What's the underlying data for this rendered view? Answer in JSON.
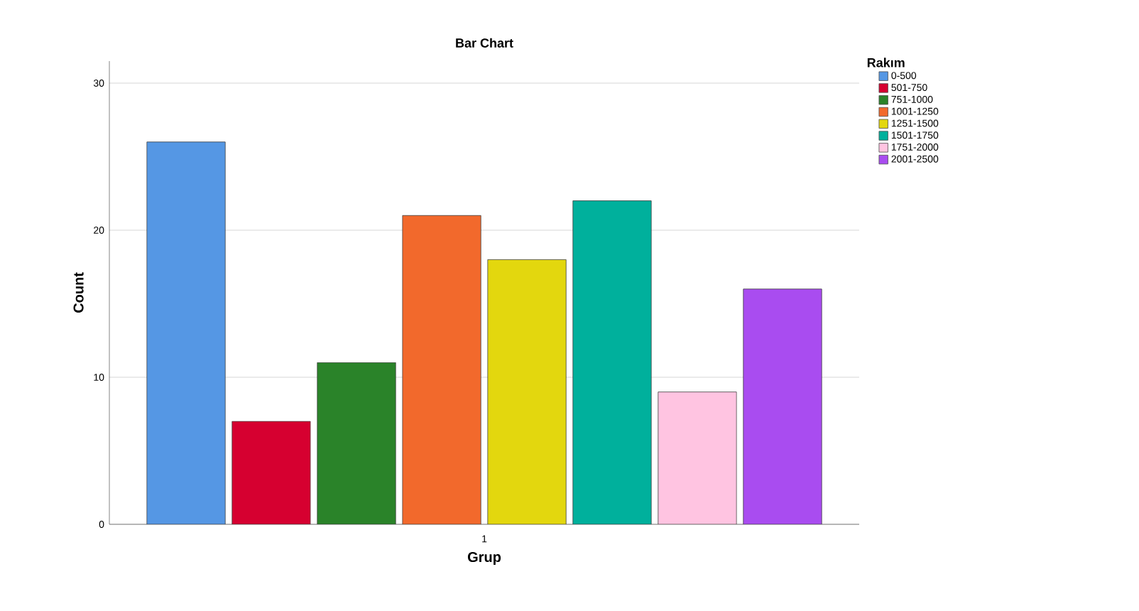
{
  "chart_data": {
    "type": "bar",
    "title": "Bar Chart",
    "xlabel": "Grup",
    "ylabel": "Count",
    "legend_title": "Rakım",
    "categories": [
      "1"
    ],
    "series": [
      {
        "name": "0-500",
        "color": "#5597e4",
        "values": [
          26
        ]
      },
      {
        "name": "501-750",
        "color": "#d60030",
        "values": [
          7
        ]
      },
      {
        "name": "751-1000",
        "color": "#2a8329",
        "values": [
          11
        ]
      },
      {
        "name": "1001-1250",
        "color": "#f2692c",
        "values": [
          21
        ]
      },
      {
        "name": "1251-1500",
        "color": "#e3d70e",
        "values": [
          18
        ]
      },
      {
        "name": "1501-1750",
        "color": "#00b09c",
        "values": [
          22
        ]
      },
      {
        "name": "1751-2000",
        "color": "#ffc4e1",
        "values": [
          9
        ]
      },
      {
        "name": "2001-2500",
        "color": "#a94cf0",
        "values": [
          16
        ]
      }
    ],
    "ylim": [
      0,
      31.5
    ],
    "yticks": [
      0,
      10,
      20,
      30
    ],
    "grid": "y",
    "legend": "top right"
  }
}
